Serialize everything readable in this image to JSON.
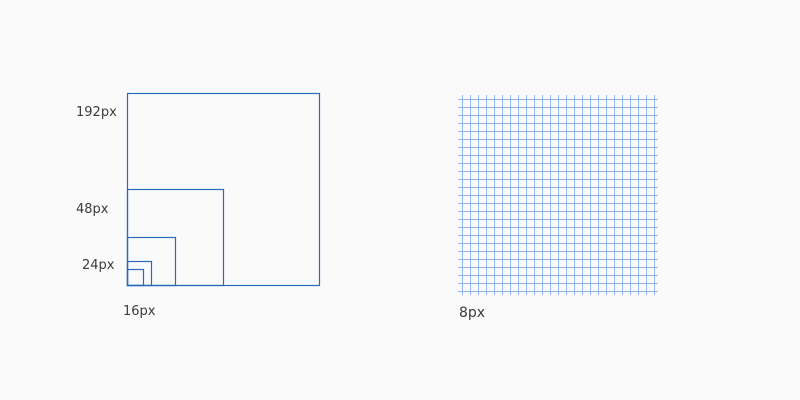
{
  "sizes_diagram": {
    "squares": [
      {
        "label": "192px",
        "size": 192
      },
      {
        "label": "48px",
        "size": 96
      },
      {
        "label": "24px",
        "size": 48
      },
      {
        "label": "16px",
        "size": 24
      },
      {
        "label": "",
        "size": 16
      }
    ],
    "bottom_label": "16px"
  },
  "grid_diagram": {
    "label": "8px",
    "cell": 8,
    "count": 24
  },
  "colors": {
    "square_stroke": "#2a6ab8",
    "grid_stroke": "#8fb5ec",
    "text": "#3c3c3c",
    "background": "#fafafa"
  }
}
